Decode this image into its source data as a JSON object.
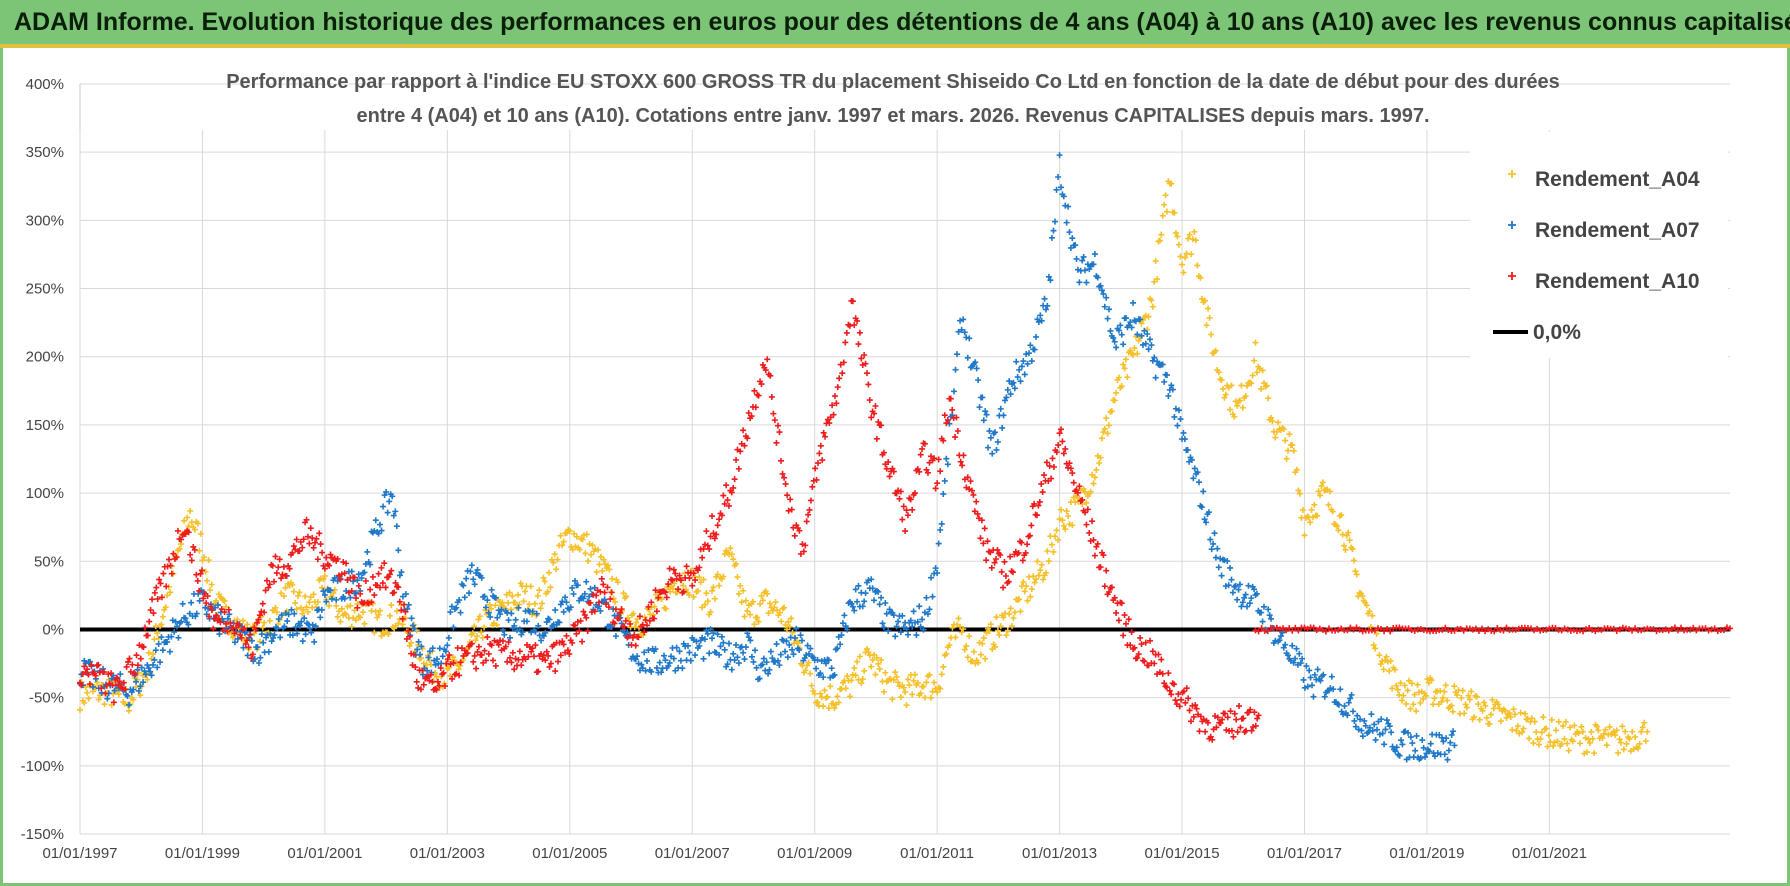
{
  "header": {
    "title": "ADAM Informe. Evolution historique des performances en euros pour des détentions de 4 ans (A04) à 10 ans (A10) avec les revenus connus capitalisés"
  },
  "colors": {
    "A04": "#f5c02a",
    "A07": "#1f78c8",
    "A10": "#ee1c1c",
    "zero": "#000000",
    "banner": "#7cc576"
  },
  "chart_data": {
    "type": "scatter",
    "title_line1": "Performance par rapport à l'indice EU STOXX 600 GROSS TR  du placement Shiseido Co Ltd en fonction de la date de début pour des durées",
    "title_line2": "entre 4 (A04) et 10 ans (A10).  Cotations entre janv. 1997 et mars. 2026.  Revenus CAPITALISES depuis mars. 1997.",
    "xlim": [
      1997.0,
      2023.95
    ],
    "ylim": [
      -150,
      400
    ],
    "y_ticks": [
      -150,
      -100,
      -50,
      0,
      50,
      100,
      150,
      200,
      250,
      300,
      350,
      400
    ],
    "y_tick_labels": [
      "-150%",
      "-100%",
      "-50%",
      "0%",
      "50%",
      "100%",
      "150%",
      "200%",
      "250%",
      "300%",
      "350%",
      "400%"
    ],
    "x_ticks": [
      1997,
      1999,
      2001,
      2003,
      2005,
      2007,
      2009,
      2011,
      2013,
      2015,
      2017,
      2019,
      2021
    ],
    "x_tick_labels": [
      "01/01/1997",
      "01/01/1999",
      "01/01/2001",
      "01/01/2003",
      "01/01/2005",
      "01/01/2007",
      "01/01/2009",
      "01/01/2011",
      "01/01/2013",
      "01/01/2015",
      "01/01/2017",
      "01/01/2019",
      "01/01/2021"
    ],
    "legend": {
      "position": "top-right",
      "items": [
        {
          "key": "A04",
          "label": "Rendement_A04",
          "marker": "+"
        },
        {
          "key": "A07",
          "label": "Rendement_A07",
          "marker": "+"
        },
        {
          "key": "A10",
          "label": "Rendement_A10",
          "marker": "+"
        },
        {
          "key": "zero",
          "label": "0,0%",
          "marker": "line"
        }
      ]
    },
    "series": [
      {
        "key": "A04",
        "name": "Rendement_A04",
        "points": [
          [
            1997.0,
            -48
          ],
          [
            1997.4,
            -45
          ],
          [
            1997.8,
            -52
          ],
          [
            1998.1,
            -30
          ],
          [
            1998.4,
            20
          ],
          [
            1998.6,
            55
          ],
          [
            1998.8,
            85
          ],
          [
            1999.0,
            60
          ],
          [
            1999.2,
            20
          ],
          [
            1999.5,
            5
          ],
          [
            1999.8,
            -8
          ],
          [
            2000.1,
            5
          ],
          [
            2000.4,
            25
          ],
          [
            2000.7,
            15
          ],
          [
            2001.0,
            30
          ],
          [
            2001.3,
            10
          ],
          [
            2001.6,
            15
          ],
          [
            2001.9,
            5
          ],
          [
            2002.2,
            10
          ],
          [
            2002.5,
            -10
          ],
          [
            2002.8,
            -30
          ],
          [
            2003.0,
            -35
          ],
          [
            2003.3,
            -20
          ],
          [
            2003.6,
            5
          ],
          [
            2003.9,
            15
          ],
          [
            2004.2,
            25
          ],
          [
            2004.5,
            20
          ],
          [
            2004.8,
            55
          ],
          [
            2005.0,
            70
          ],
          [
            2005.3,
            60
          ],
          [
            2005.6,
            40
          ],
          [
            2005.9,
            15
          ],
          [
            2006.2,
            5
          ],
          [
            2006.5,
            20
          ],
          [
            2006.8,
            40
          ],
          [
            2007.0,
            35
          ],
          [
            2007.3,
            20
          ],
          [
            2007.6,
            55
          ],
          [
            2007.9,
            10
          ],
          [
            2008.2,
            20
          ],
          [
            2008.5,
            10
          ],
          [
            2008.8,
            -20
          ],
          [
            2009.0,
            -45
          ],
          [
            2009.3,
            -50
          ],
          [
            2009.6,
            -40
          ],
          [
            2009.9,
            -20
          ],
          [
            2010.2,
            -40
          ],
          [
            2010.5,
            -45
          ],
          [
            2010.8,
            -40
          ],
          [
            2011.0,
            -42
          ],
          [
            2011.2,
            -10
          ],
          [
            2011.4,
            0
          ],
          [
            2011.6,
            -20
          ],
          [
            2011.9,
            -5
          ],
          [
            2012.2,
            10
          ],
          [
            2012.5,
            30
          ],
          [
            2012.8,
            50
          ],
          [
            2013.0,
            80
          ],
          [
            2013.3,
            90
          ],
          [
            2013.6,
            120
          ],
          [
            2013.9,
            170
          ],
          [
            2014.2,
            200
          ],
          [
            2014.5,
            240
          ],
          [
            2014.8,
            330
          ],
          [
            2015.0,
            270
          ],
          [
            2015.2,
            290
          ],
          [
            2015.4,
            230
          ],
          [
            2015.6,
            190
          ],
          [
            2015.9,
            160
          ],
          [
            2016.2,
            200
          ],
          [
            2016.5,
            150
          ],
          [
            2016.8,
            130
          ],
          [
            2017.0,
            80
          ],
          [
            2017.3,
            100
          ],
          [
            2017.6,
            80
          ],
          [
            2017.9,
            30
          ],
          [
            2018.2,
            -10
          ],
          [
            2018.5,
            -40
          ],
          [
            2018.8,
            -50
          ],
          [
            2019.1,
            -45
          ],
          [
            2019.4,
            -50
          ],
          [
            2019.7,
            -55
          ],
          [
            2020.0,
            -60
          ],
          [
            2020.3,
            -65
          ],
          [
            2020.6,
            -70
          ],
          [
            2020.9,
            -75
          ],
          [
            2021.2,
            -78
          ],
          [
            2021.5,
            -80
          ],
          [
            2021.8,
            -80
          ],
          [
            2022.1,
            -82
          ],
          [
            2022.4,
            -78
          ],
          [
            2022.6,
            -75
          ]
        ]
      },
      {
        "key": "A07",
        "name": "Rendement_A07",
        "points": [
          [
            1997.0,
            -30
          ],
          [
            1997.4,
            -40
          ],
          [
            1997.8,
            -45
          ],
          [
            1998.1,
            -30
          ],
          [
            1998.4,
            -10
          ],
          [
            1998.7,
            10
          ],
          [
            1999.0,
            20
          ],
          [
            1999.3,
            5
          ],
          [
            1999.6,
            -5
          ],
          [
            1999.9,
            -15
          ],
          [
            2000.2,
            0
          ],
          [
            2000.5,
            5
          ],
          [
            2000.8,
            -5
          ],
          [
            2001.0,
            25
          ],
          [
            2001.3,
            30
          ],
          [
            2001.6,
            40
          ],
          [
            2001.9,
            80
          ],
          [
            2002.1,
            100
          ],
          [
            2002.3,
            20
          ],
          [
            2002.6,
            -25
          ],
          [
            2002.9,
            -20
          ],
          [
            2003.1,
            10
          ],
          [
            2003.4,
            40
          ],
          [
            2003.7,
            20
          ],
          [
            2004.0,
            0
          ],
          [
            2004.3,
            10
          ],
          [
            2004.6,
            0
          ],
          [
            2004.9,
            20
          ],
          [
            2005.2,
            30
          ],
          [
            2005.5,
            20
          ],
          [
            2005.8,
            0
          ],
          [
            2006.1,
            -20
          ],
          [
            2006.4,
            -25
          ],
          [
            2006.7,
            -20
          ],
          [
            2007.0,
            -15
          ],
          [
            2007.3,
            -10
          ],
          [
            2007.6,
            -20
          ],
          [
            2007.9,
            -10
          ],
          [
            2008.1,
            -30
          ],
          [
            2008.4,
            -20
          ],
          [
            2008.7,
            -10
          ],
          [
            2009.0,
            -25
          ],
          [
            2009.3,
            -30
          ],
          [
            2009.6,
            20
          ],
          [
            2009.9,
            30
          ],
          [
            2010.2,
            5
          ],
          [
            2010.5,
            0
          ],
          [
            2010.8,
            10
          ],
          [
            2011.0,
            50
          ],
          [
            2011.2,
            140
          ],
          [
            2011.4,
            230
          ],
          [
            2011.6,
            190
          ],
          [
            2011.9,
            130
          ],
          [
            2012.2,
            180
          ],
          [
            2012.5,
            200
          ],
          [
            2012.8,
            240
          ],
          [
            2013.0,
            340
          ],
          [
            2013.3,
            260
          ],
          [
            2013.6,
            270
          ],
          [
            2013.9,
            210
          ],
          [
            2014.2,
            230
          ],
          [
            2014.5,
            200
          ],
          [
            2014.8,
            180
          ],
          [
            2015.0,
            140
          ],
          [
            2015.3,
            100
          ],
          [
            2015.6,
            50
          ],
          [
            2015.9,
            30
          ],
          [
            2016.2,
            20
          ],
          [
            2016.5,
            0
          ],
          [
            2016.8,
            -20
          ],
          [
            2017.1,
            -40
          ],
          [
            2017.4,
            -40
          ],
          [
            2017.7,
            -55
          ],
          [
            2018.0,
            -70
          ],
          [
            2018.3,
            -75
          ],
          [
            2018.6,
            -85
          ],
          [
            2018.9,
            -85
          ],
          [
            2019.2,
            -85
          ],
          [
            2019.45,
            -85
          ]
        ]
      },
      {
        "key": "A10",
        "name": "Rendement_A10",
        "points": [
          [
            1997.0,
            -30
          ],
          [
            1997.3,
            -35
          ],
          [
            1997.6,
            -45
          ],
          [
            1997.9,
            -25
          ],
          [
            1998.2,
            15
          ],
          [
            1998.5,
            50
          ],
          [
            1998.7,
            80
          ],
          [
            1998.9,
            45
          ],
          [
            1999.2,
            5
          ],
          [
            1999.5,
            10
          ],
          [
            1999.8,
            -15
          ],
          [
            2000.1,
            40
          ],
          [
            2000.4,
            50
          ],
          [
            2000.7,
            70
          ],
          [
            2001.0,
            55
          ],
          [
            2001.3,
            45
          ],
          [
            2001.6,
            20
          ],
          [
            2001.9,
            40
          ],
          [
            2002.2,
            30
          ],
          [
            2002.5,
            -35
          ],
          [
            2002.8,
            -45
          ],
          [
            2003.1,
            -25
          ],
          [
            2003.4,
            -20
          ],
          [
            2003.7,
            -15
          ],
          [
            2004.0,
            -20
          ],
          [
            2004.3,
            -20
          ],
          [
            2004.6,
            -25
          ],
          [
            2004.9,
            -15
          ],
          [
            2005.2,
            0
          ],
          [
            2005.5,
            30
          ],
          [
            2005.8,
            10
          ],
          [
            2006.1,
            -5
          ],
          [
            2006.4,
            20
          ],
          [
            2006.7,
            40
          ],
          [
            2007.0,
            35
          ],
          [
            2007.3,
            70
          ],
          [
            2007.6,
            100
          ],
          [
            2007.9,
            150
          ],
          [
            2008.2,
            200
          ],
          [
            2008.4,
            140
          ],
          [
            2008.6,
            90
          ],
          [
            2008.8,
            60
          ],
          [
            2009.1,
            130
          ],
          [
            2009.4,
            180
          ],
          [
            2009.6,
            240
          ],
          [
            2009.9,
            170
          ],
          [
            2010.2,
            120
          ],
          [
            2010.5,
            80
          ],
          [
            2010.8,
            130
          ],
          [
            2011.0,
            110
          ],
          [
            2011.2,
            170
          ],
          [
            2011.5,
            110
          ],
          [
            2011.8,
            60
          ],
          [
            2012.1,
            40
          ],
          [
            2012.4,
            60
          ],
          [
            2012.7,
            100
          ],
          [
            2013.0,
            140
          ],
          [
            2013.3,
            100
          ],
          [
            2013.6,
            60
          ],
          [
            2013.9,
            20
          ],
          [
            2014.2,
            -10
          ],
          [
            2014.5,
            -20
          ],
          [
            2014.8,
            -40
          ],
          [
            2015.1,
            -55
          ],
          [
            2015.4,
            -70
          ],
          [
            2015.7,
            -72
          ],
          [
            2016.0,
            -65
          ],
          [
            2016.25,
            -63
          ]
        ]
      },
      {
        "key": "zero",
        "name": "0,0%",
        "points": [
          [
            1997.0,
            0
          ],
          [
            2023.95,
            0
          ]
        ]
      }
    ],
    "A10_zero_band": {
      "from": 2016.2,
      "to": 2023.95,
      "value": 0
    }
  }
}
